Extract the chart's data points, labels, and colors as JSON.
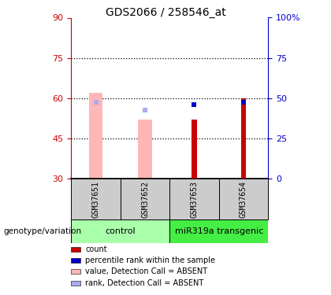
{
  "title": "GDS2066 / 258546_at",
  "samples": [
    "GSM37651",
    "GSM37652",
    "GSM37653",
    "GSM37654"
  ],
  "ylim_left": [
    30,
    90
  ],
  "ylim_right": [
    0,
    100
  ],
  "yticks_left": [
    30,
    45,
    60,
    75,
    90
  ],
  "yticks_right": [
    0,
    25,
    50,
    75,
    100
  ],
  "ytick_labels_right": [
    "0",
    "25",
    "50",
    "75",
    "100%"
  ],
  "bar_bottom": 30,
  "pink_bar_tops": [
    62.0,
    52.0,
    null,
    null
  ],
  "pink_rank_positions": [
    58.5,
    55.5,
    null,
    null
  ],
  "dark_red_bar_tops": [
    null,
    null,
    52.0,
    60.0
  ],
  "blue_rank_positions": [
    null,
    null,
    57.5,
    58.5
  ],
  "colors": {
    "dark_red": "#CC0000",
    "blue": "#0000CC",
    "pink_bar": "#FFB6B6",
    "light_blue": "#AAAAEE",
    "ctrl_green": "#AAFFAA",
    "mir_green": "#44EE44",
    "sample_bg": "#CCCCCC",
    "left_axis_color": "#CC0000",
    "right_axis_color": "#0000CC"
  },
  "legend_labels": [
    "count",
    "percentile rank within the sample",
    "value, Detection Call = ABSENT",
    "rank, Detection Call = ABSENT"
  ],
  "legend_colors": [
    "#CC0000",
    "#0000CC",
    "#FFB6B6",
    "#AAAAEE"
  ]
}
